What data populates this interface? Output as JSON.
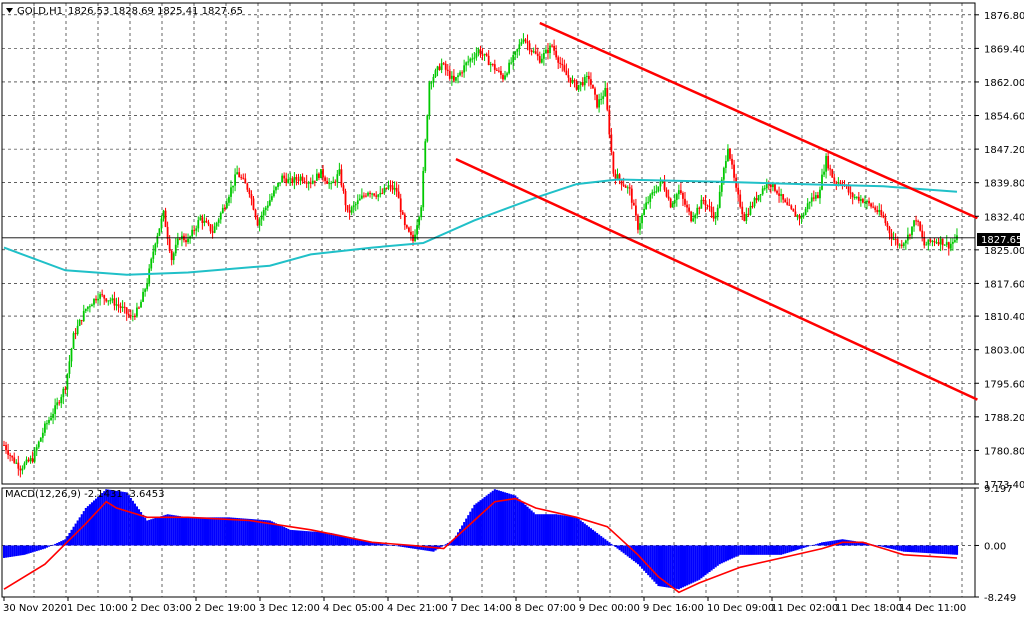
{
  "header": {
    "symbol_label": "GOLD,H1",
    "ohlc": "1826.53 1828.69 1825.41 1827.65",
    "current_price": "1827.65"
  },
  "colors": {
    "background": "#ffffff",
    "grid": "#000000",
    "bull_candle": "#00c800",
    "bear_candle": "#ff0000",
    "moving_average": "#20c0c8",
    "trend_line": "#ff0000",
    "macd_histogram": "#0000ff",
    "macd_signal": "#ff0000"
  },
  "chart_data": [
    {
      "type": "candlestick",
      "title": "GOLD,H1",
      "ylim": [
        1773.4,
        1879.4
      ],
      "y_ticks": [
        "1876.80",
        "1869.40",
        "1862.00",
        "1854.60",
        "1847.20",
        "1839.80",
        "1832.40",
        "1825.00",
        "1817.60",
        "1810.40",
        "1803.00",
        "1795.60",
        "1788.20",
        "1780.80",
        "1773.40"
      ],
      "x_ticks": [
        "30 Nov 2020",
        "1 Dec 10:00",
        "2 Dec 03:00",
        "2 Dec 19:00",
        "3 Dec 12:00",
        "4 Dec 05:00",
        "4 Dec 21:00",
        "7 Dec 14:00",
        "8 Dec 07:00",
        "9 Dec 00:00",
        "9 Dec 16:00",
        "10 Dec 09:00",
        "11 Dec 02:00",
        "11 Dec 18:00",
        "14 Dec 11:00"
      ],
      "last_price": 1827.65,
      "close_path": [
        [
          0,
          1782
        ],
        [
          4,
          1779
        ],
        [
          8,
          1777
        ],
        [
          14,
          1779
        ],
        [
          20,
          1786
        ],
        [
          25,
          1790
        ],
        [
          30,
          1795
        ],
        [
          34,
          1806
        ],
        [
          40,
          1812
        ],
        [
          46,
          1815
        ],
        [
          52,
          1814
        ],
        [
          58,
          1812
        ],
        [
          62,
          1810
        ],
        [
          66,
          1812
        ],
        [
          70,
          1818
        ],
        [
          74,
          1827
        ],
        [
          78,
          1833
        ],
        [
          82,
          1823
        ],
        [
          86,
          1828
        ],
        [
          90,
          1827
        ],
        [
          96,
          1832
        ],
        [
          102,
          1829
        ],
        [
          108,
          1835
        ],
        [
          114,
          1842
        ],
        [
          120,
          1838
        ],
        [
          124,
          1831
        ],
        [
          130,
          1836
        ],
        [
          136,
          1841
        ],
        [
          140,
          1840
        ],
        [
          145,
          1841
        ],
        [
          150,
          1840
        ],
        [
          155,
          1842
        ],
        [
          160,
          1839
        ],
        [
          164,
          1842
        ],
        [
          168,
          1833
        ],
        [
          172,
          1835
        ],
        [
          178,
          1838
        ],
        [
          184,
          1837
        ],
        [
          188,
          1839
        ],
        [
          192,
          1838
        ],
        [
          196,
          1830
        ],
        [
          200,
          1827
        ],
        [
          204,
          1835
        ],
        [
          208,
          1862
        ],
        [
          214,
          1866
        ],
        [
          220,
          1862
        ],
        [
          226,
          1866
        ],
        [
          232,
          1869
        ],
        [
          238,
          1866
        ],
        [
          244,
          1863
        ],
        [
          250,
          1868
        ],
        [
          254,
          1872
        ],
        [
          258,
          1869
        ],
        [
          262,
          1867
        ],
        [
          268,
          1870
        ],
        [
          274,
          1864
        ],
        [
          280,
          1861
        ],
        [
          286,
          1863
        ],
        [
          290,
          1857
        ],
        [
          294,
          1860
        ],
        [
          298,
          1842
        ],
        [
          302,
          1840
        ],
        [
          306,
          1838
        ],
        [
          310,
          1830
        ],
        [
          314,
          1835
        ],
        [
          318,
          1838
        ],
        [
          322,
          1840
        ],
        [
          326,
          1835
        ],
        [
          330,
          1838
        ],
        [
          336,
          1832
        ],
        [
          342,
          1836
        ],
        [
          348,
          1832
        ],
        [
          354,
          1848
        ],
        [
          358,
          1838
        ],
        [
          362,
          1832
        ],
        [
          366,
          1835
        ],
        [
          370,
          1838
        ],
        [
          374,
          1840
        ],
        [
          378,
          1838
        ],
        [
          382,
          1835
        ],
        [
          386,
          1833
        ],
        [
          390,
          1832
        ],
        [
          394,
          1836
        ],
        [
          398,
          1837
        ],
        [
          402,
          1845
        ],
        [
          406,
          1840
        ],
        [
          410,
          1840
        ],
        [
          414,
          1837
        ],
        [
          420,
          1836
        ],
        [
          426,
          1834
        ],
        [
          430,
          1832
        ],
        [
          434,
          1828
        ],
        [
          438,
          1826
        ],
        [
          442,
          1828
        ],
        [
          446,
          1832
        ],
        [
          450,
          1826
        ],
        [
          454,
          1827
        ],
        [
          458,
          1827
        ],
        [
          462,
          1826
        ],
        [
          466,
          1827.5
        ]
      ],
      "moving_average": [
        [
          0,
          1825.5
        ],
        [
          30,
          1820.5
        ],
        [
          60,
          1819.5
        ],
        [
          90,
          1820
        ],
        [
          130,
          1821.5
        ],
        [
          150,
          1824
        ],
        [
          180,
          1825.5
        ],
        [
          205,
          1826.5
        ],
        [
          230,
          1831.5
        ],
        [
          260,
          1836.5
        ],
        [
          280,
          1839.5
        ],
        [
          300,
          1840.5
        ],
        [
          350,
          1840
        ],
        [
          390,
          1839.5
        ],
        [
          430,
          1839
        ],
        [
          466,
          1837.8
        ]
      ],
      "channel_upper": [
        [
          262,
          1875
        ],
        [
          476,
          1832
        ]
      ],
      "channel_lower": [
        [
          221,
          1845
        ],
        [
          476,
          1792
        ]
      ]
    },
    {
      "type": "histogram",
      "title": "MACD(12,26,9) -2.1431 -3.6453",
      "ylim": [
        -8.249,
        9.197
      ],
      "y_ticks": [
        "9.197",
        "0.00",
        "-8.249"
      ],
      "histogram_path": [
        [
          0,
          -2.0
        ],
        [
          10,
          -1.5
        ],
        [
          20,
          -0.5
        ],
        [
          30,
          1.0
        ],
        [
          40,
          6.0
        ],
        [
          50,
          9.0
        ],
        [
          60,
          8.5
        ],
        [
          70,
          4.0
        ],
        [
          80,
          5.0
        ],
        [
          90,
          4.5
        ],
        [
          110,
          4.5
        ],
        [
          130,
          4.0
        ],
        [
          140,
          2.5
        ],
        [
          160,
          2.0
        ],
        [
          180,
          0.5
        ],
        [
          190,
          0.0
        ],
        [
          200,
          -0.5
        ],
        [
          210,
          -1.0
        ],
        [
          220,
          1.0
        ],
        [
          230,
          6.5
        ],
        [
          240,
          9.0
        ],
        [
          250,
          8.0
        ],
        [
          260,
          5.0
        ],
        [
          270,
          5.0
        ],
        [
          280,
          4.5
        ],
        [
          290,
          2.0
        ],
        [
          300,
          -0.5
        ],
        [
          310,
          -3.0
        ],
        [
          320,
          -6.5
        ],
        [
          330,
          -7.0
        ],
        [
          340,
          -5.5
        ],
        [
          350,
          -3.0
        ],
        [
          360,
          -1.5
        ],
        [
          380,
          -1.5
        ],
        [
          400,
          0.5
        ],
        [
          410,
          1.0
        ],
        [
          420,
          0.5
        ],
        [
          440,
          -1.0
        ],
        [
          466,
          -1.5
        ]
      ],
      "signal_path": [
        [
          0,
          -7.0
        ],
        [
          20,
          -3.0
        ],
        [
          40,
          3.5
        ],
        [
          50,
          7.0
        ],
        [
          55,
          6.0
        ],
        [
          70,
          4.5
        ],
        [
          90,
          4.5
        ],
        [
          120,
          4.0
        ],
        [
          150,
          2.5
        ],
        [
          180,
          0.5
        ],
        [
          200,
          0.0
        ],
        [
          215,
          -0.5
        ],
        [
          230,
          4.0
        ],
        [
          240,
          7.0
        ],
        [
          250,
          7.5
        ],
        [
          260,
          6.0
        ],
        [
          280,
          4.5
        ],
        [
          295,
          3.0
        ],
        [
          310,
          -1.5
        ],
        [
          320,
          -5.0
        ],
        [
          330,
          -7.5
        ],
        [
          340,
          -6.0
        ],
        [
          360,
          -3.5
        ],
        [
          380,
          -2.0
        ],
        [
          400,
          -0.5
        ],
        [
          410,
          0.5
        ],
        [
          420,
          0.5
        ],
        [
          440,
          -1.5
        ],
        [
          466,
          -2.0
        ]
      ]
    }
  ]
}
